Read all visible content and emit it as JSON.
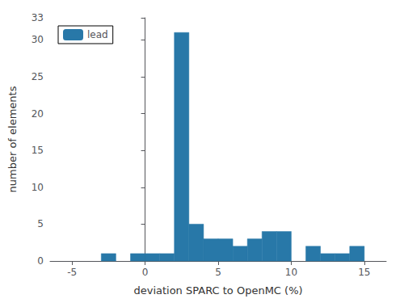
{
  "chart_data": {
    "type": "histogram",
    "bins": [
      -5,
      -4,
      -3,
      -2,
      -1,
      0,
      1,
      2,
      3,
      4,
      5,
      6,
      7,
      8,
      9,
      10,
      11,
      12,
      13,
      14,
      15
    ],
    "series": [
      {
        "name": "lead",
        "color": "#2878a8",
        "values": [
          0,
          0,
          1,
          0,
          1,
          1,
          1,
          31,
          5,
          3,
          3,
          2,
          3,
          4,
          4,
          0,
          2,
          1,
          1,
          2
        ]
      }
    ],
    "xlabel": "deviation SPARC to OpenMC (%)",
    "ylabel": "number of elements",
    "xlim": [
      -6.5,
      16.5
    ],
    "ylim": [
      0,
      33
    ],
    "xticks": [
      -5,
      0,
      5,
      10,
      15
    ],
    "yticks": [
      0,
      5,
      10,
      15,
      20,
      25,
      30
    ],
    "grid": false,
    "legend": "upper left"
  }
}
